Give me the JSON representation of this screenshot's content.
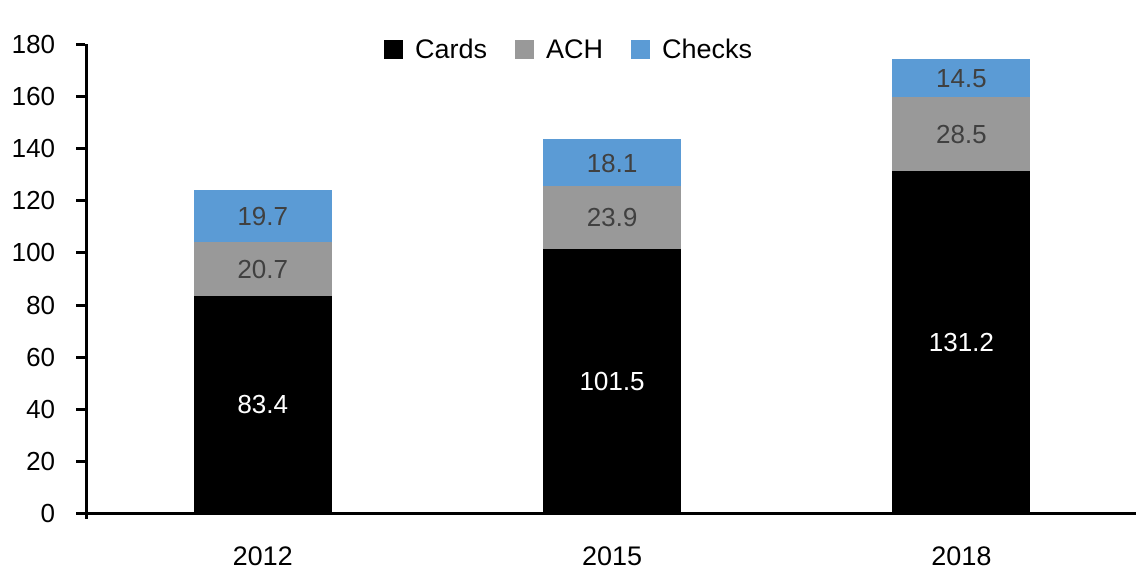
{
  "chart_data": {
    "type": "bar",
    "stacked": true,
    "title": "",
    "xlabel": "",
    "ylabel": "",
    "categories": [
      "2012",
      "2015",
      "2018"
    ],
    "series": [
      {
        "name": "Cards",
        "color": "#000000",
        "label_color": "#ffffff",
        "values": [
          83.4,
          101.5,
          131.2
        ]
      },
      {
        "name": "ACH",
        "color": "#999999",
        "label_color": "#404040",
        "values": [
          20.7,
          23.9,
          28.5
        ]
      },
      {
        "name": "Checks",
        "color": "#5b9bd5",
        "label_color": "#404040",
        "values": [
          19.7,
          18.1,
          14.5
        ]
      }
    ],
    "totals": [
      123.8,
      143.5,
      174.2
    ],
    "ylim": [
      0,
      180
    ],
    "yticks": [
      0,
      20,
      40,
      60,
      80,
      100,
      120,
      140,
      160,
      180
    ],
    "grid": false,
    "legend_position": "top-center",
    "axis_color": "#000000"
  }
}
